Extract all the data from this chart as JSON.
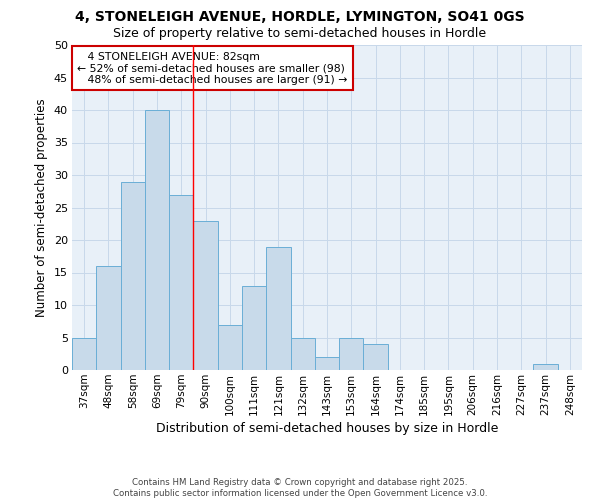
{
  "title1": "4, STONELEIGH AVENUE, HORDLE, LYMINGTON, SO41 0GS",
  "title2": "Size of property relative to semi-detached houses in Hordle",
  "xlabel": "Distribution of semi-detached houses by size in Hordle",
  "ylabel": "Number of semi-detached properties",
  "categories": [
    "37sqm",
    "48sqm",
    "58sqm",
    "69sqm",
    "79sqm",
    "90sqm",
    "100sqm",
    "111sqm",
    "121sqm",
    "132sqm",
    "143sqm",
    "153sqm",
    "164sqm",
    "174sqm",
    "185sqm",
    "195sqm",
    "206sqm",
    "216sqm",
    "227sqm",
    "237sqm",
    "248sqm"
  ],
  "values": [
    5,
    16,
    29,
    40,
    27,
    23,
    7,
    13,
    19,
    5,
    2,
    5,
    4,
    0,
    0,
    0,
    0,
    0,
    0,
    1,
    0
  ],
  "bar_color": "#c8daea",
  "bar_edge_color": "#6aaed6",
  "vline_x": 4.5,
  "ylim": [
    0,
    50
  ],
  "yticks": [
    0,
    5,
    10,
    15,
    20,
    25,
    30,
    35,
    40,
    45,
    50
  ],
  "annotation_box_color": "#cc0000",
  "grid_color": "#c8d8ea",
  "bg_color": "#e8f0f8",
  "property_label": "4 STONELEIGH AVENUE: 82sqm",
  "smaller_pct": 52,
  "smaller_count": 98,
  "larger_pct": 48,
  "larger_count": 91,
  "footer": "Contains HM Land Registry data © Crown copyright and database right 2025.\nContains public sector information licensed under the Open Government Licence v3.0."
}
